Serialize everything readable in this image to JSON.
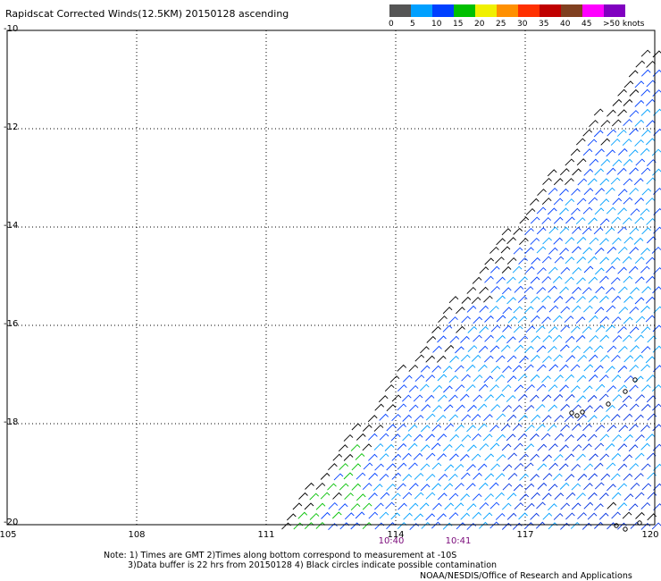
{
  "title": "Rapidscat Corrected Winds(12.5KM) 20150128 ascending",
  "scale": {
    "colors": [
      "#555555",
      "#00a0ff",
      "#0040ff",
      "#00c000",
      "#f0f000",
      "#ff9000",
      "#ff3000",
      "#c00000",
      "#804020",
      "#ff00ff",
      "#8000c0"
    ],
    "labels": [
      "0",
      "5",
      "10",
      "15",
      "20",
      "25",
      "30",
      "35",
      "40",
      "45",
      ">50 knots"
    ]
  },
  "map": {
    "lat_labels": [
      "-10",
      "-12",
      "-14",
      "-16",
      "-18",
      "-20"
    ],
    "lon_labels": [
      "105",
      "108",
      "111",
      "114",
      "117",
      "120"
    ],
    "time_labels": [
      "10:40",
      "10:41"
    ]
  },
  "notes": [
    "Note: 1) Times are GMT 2)Times along bottom correspond to measurement at -10S",
    "3)Data buffer is 22 hrs from 20150128 4) Black circles indicate possible contamination"
  ],
  "credit": "NOAA/NESDIS/Office of Research and Applications"
}
